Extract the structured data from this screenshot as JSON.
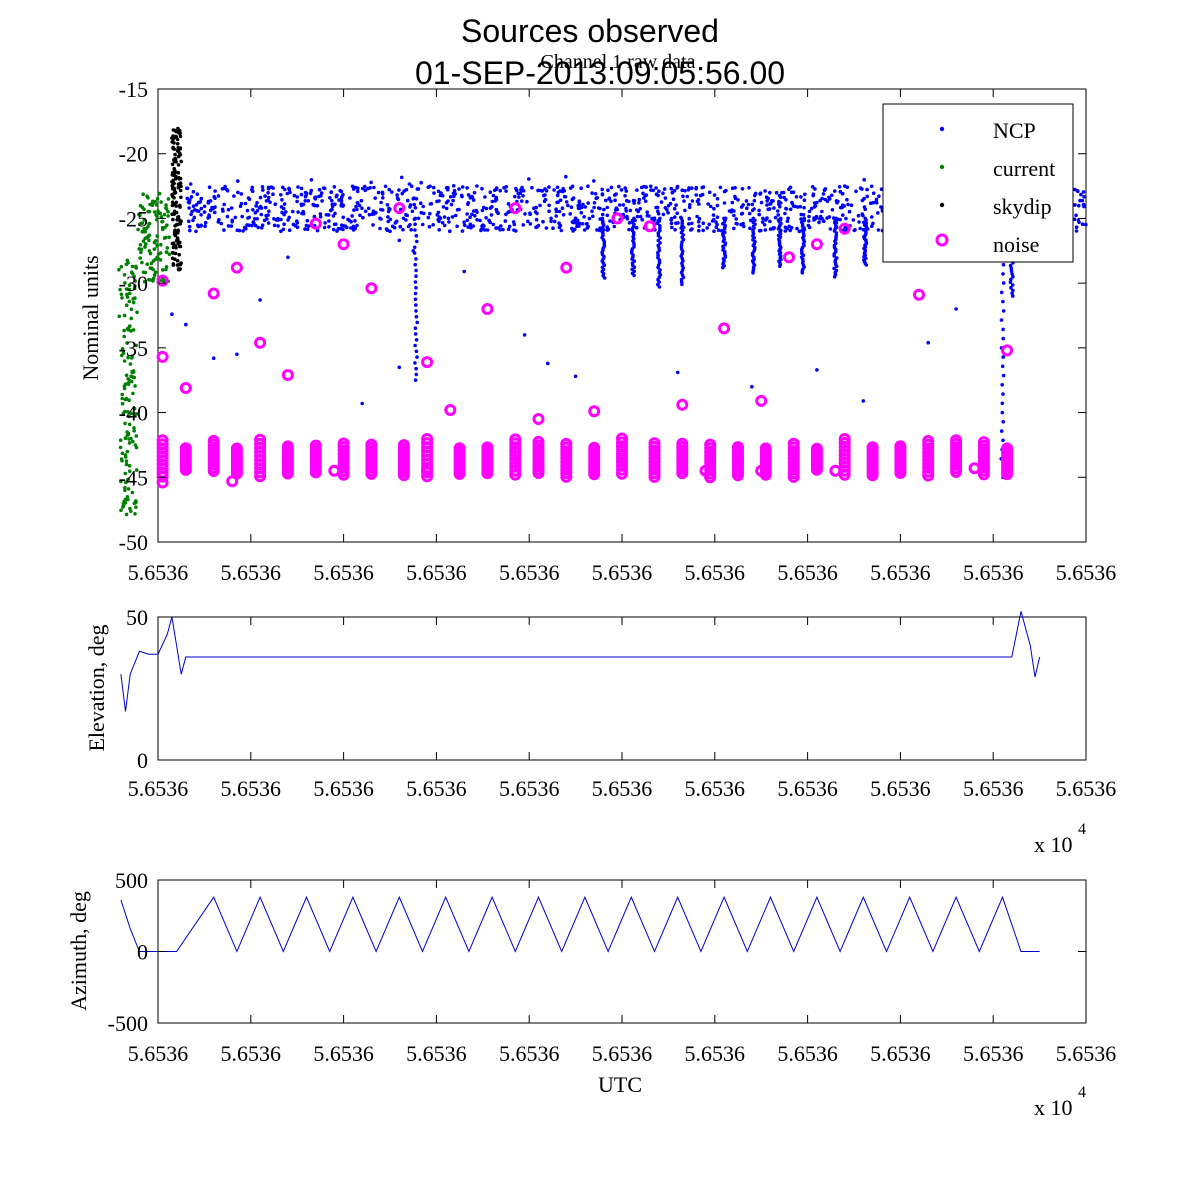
{
  "figure": {
    "title_line1": "Sources observed",
    "title_line2": "01-SEP-2013:09:05:56.00",
    "colors": {
      "NCP": "#0000ff",
      "current": "#008000",
      "skydip": "#000000",
      "noise": "#ff00ff",
      "line": "#0000cc"
    }
  },
  "chart_data": [
    {
      "type": "scatter",
      "title": "Channel 1 raw data",
      "ylabel": "Nominal units",
      "ylim": [
        -50,
        -15
      ],
      "yticks": [
        "-15",
        "-20",
        "-25",
        "-30",
        "-35",
        "-40",
        "-45",
        "-50"
      ],
      "xticks": [
        "5.6536",
        "5.6536",
        "5.6536",
        "5.6536",
        "5.6536",
        "5.6536",
        "5.6536",
        "5.6536",
        "5.6536",
        "5.6536",
        "5.6536"
      ],
      "x_domain": [
        0,
        10
      ],
      "legend": [
        "NCP",
        "current",
        "skydip",
        "noise"
      ],
      "legend_position": "top-right",
      "series": [
        {
          "name": "NCP",
          "note": "dense scan band between about -22 and -26 from x=0.3 to x=10, with dips",
          "band": [
            -26,
            -22.5
          ],
          "x_range": [
            0.3,
            10
          ],
          "dips": [
            [
              2.78,
              -37.5
            ],
            [
              4.8,
              -29.6
            ],
            [
              5.12,
              -29.4
            ],
            [
              5.4,
              -30.3
            ],
            [
              5.65,
              -30.1
            ],
            [
              6.1,
              -28.8
            ],
            [
              6.42,
              -29.2
            ],
            [
              6.7,
              -28.7
            ],
            [
              6.95,
              -29.2
            ],
            [
              7.3,
              -29.5
            ],
            [
              7.62,
              -28.6
            ],
            [
              9.1,
              -45.0
            ],
            [
              9.2,
              -31.0
            ]
          ],
          "outliers": [
            [
              0.15,
              -32.4
            ],
            [
              0.3,
              -33.2
            ],
            [
              0.6,
              -35.8
            ],
            [
              0.85,
              -35.5
            ],
            [
              1.1,
              -31.3
            ],
            [
              1.4,
              -28.0
            ],
            [
              2.2,
              -39.3
            ],
            [
              2.6,
              -36.5
            ],
            [
              3.3,
              -29.1
            ],
            [
              3.95,
              -34.0
            ],
            [
              4.2,
              -36.2
            ],
            [
              4.5,
              -37.2
            ],
            [
              5.6,
              -36.9
            ],
            [
              6.4,
              -38.0
            ],
            [
              7.1,
              -36.7
            ],
            [
              7.6,
              -39.1
            ],
            [
              8.3,
              -34.6
            ],
            [
              8.6,
              -32.0
            ],
            [
              2.6,
              -26.7
            ],
            [
              2.75,
              -27.5
            ]
          ]
        },
        {
          "name": "current",
          "x_range": [
            -0.4,
            0.15
          ],
          "y_range": [
            -48,
            -23
          ]
        },
        {
          "name": "skydip",
          "x_range": [
            0.15,
            0.25
          ],
          "y_range": [
            -29,
            -18
          ]
        },
        {
          "name": "noise",
          "cluster_y": [
            -42,
            -45
          ],
          "cluster_x": [
            0.05,
            0.3,
            0.6,
            0.85,
            1.1,
            1.4,
            1.7,
            2.0,
            2.3,
            2.65,
            2.9,
            3.25,
            3.55,
            3.85,
            4.1,
            4.4,
            4.7,
            5.0,
            5.35,
            5.65,
            5.95,
            6.25,
            6.55,
            6.85,
            7.1,
            7.4,
            7.7,
            8.0,
            8.3,
            8.6,
            8.9,
            9.15
          ],
          "points": [
            [
              0.05,
              -29.8
            ],
            [
              0.05,
              -35.7
            ],
            [
              0.3,
              -38.1
            ],
            [
              0.6,
              -30.8
            ],
            [
              0.85,
              -28.8
            ],
            [
              1.1,
              -34.6
            ],
            [
              1.4,
              -37.1
            ],
            [
              1.7,
              -25.4
            ],
            [
              2.0,
              -27.0
            ],
            [
              2.3,
              -30.4
            ],
            [
              2.6,
              -24.2
            ],
            [
              2.9,
              -36.1
            ],
            [
              3.15,
              -39.8
            ],
            [
              3.55,
              -32.0
            ],
            [
              3.85,
              -24.2
            ],
            [
              4.1,
              -40.5
            ],
            [
              4.4,
              -28.8
            ],
            [
              4.7,
              -39.9
            ],
            [
              4.95,
              -25.0
            ],
            [
              5.3,
              -25.6
            ],
            [
              5.65,
              -39.4
            ],
            [
              6.1,
              -33.5
            ],
            [
              6.5,
              -39.1
            ],
            [
              6.8,
              -28.0
            ],
            [
              7.1,
              -27.0
            ],
            [
              7.4,
              -25.8
            ],
            [
              8.2,
              -30.9
            ],
            [
              9.15,
              -35.2
            ],
            [
              0.05,
              -45.4
            ],
            [
              0.8,
              -45.3
            ],
            [
              1.9,
              -44.5
            ],
            [
              2.9,
              -44.5
            ],
            [
              4.1,
              -44.4
            ],
            [
              6.5,
              -44.5
            ],
            [
              8.8,
              -44.3
            ],
            [
              7.3,
              -44.5
            ],
            [
              5.9,
              -44.5
            ]
          ]
        }
      ]
    },
    {
      "type": "line",
      "ylabel": "Elevation, deg",
      "ylim": [
        0,
        50
      ],
      "yticks": [
        "50",
        "0"
      ],
      "xticks": [
        "5.6536",
        "5.6536",
        "5.6536",
        "5.6536",
        "5.6536",
        "5.6536",
        "5.6536",
        "5.6536",
        "5.6536",
        "5.6536",
        "5.6536"
      ],
      "x_exponent_label": "x 10",
      "x_exponent": "4",
      "series": [
        {
          "name": "Elevation",
          "points": [
            [
              -0.4,
              30
            ],
            [
              -0.35,
              17
            ],
            [
              -0.3,
              30
            ],
            [
              -0.2,
              38
            ],
            [
              -0.1,
              37
            ],
            [
              0.0,
              37
            ],
            [
              0.1,
              44
            ],
            [
              0.15,
              50
            ],
            [
              0.2,
              40
            ],
            [
              0.25,
              30
            ],
            [
              0.3,
              36
            ],
            [
              9.2,
              36
            ],
            [
              9.3,
              52
            ],
            [
              9.4,
              40
            ],
            [
              9.45,
              29
            ],
            [
              9.5,
              36
            ]
          ]
        }
      ]
    },
    {
      "type": "line",
      "ylabel": "Azimuth, deg",
      "xlabel": "UTC",
      "ylim": [
        -500,
        500
      ],
      "yticks": [
        "500",
        "0",
        "-500"
      ],
      "xticks": [
        "5.6536",
        "5.6536",
        "5.6536",
        "5.6536",
        "5.6536",
        "5.6536",
        "5.6536",
        "5.6536",
        "5.6536",
        "5.6536",
        "5.6536"
      ],
      "x_exponent_label": "x 10",
      "x_exponent": "4",
      "series": [
        {
          "name": "Azimuth",
          "points": [
            [
              -0.4,
              360
            ],
            [
              -0.3,
              160
            ],
            [
              -0.2,
              0
            ],
            [
              0.2,
              0
            ],
            [
              0.6,
              380
            ],
            [
              0.85,
              0
            ],
            [
              1.1,
              380
            ],
            [
              1.35,
              0
            ],
            [
              1.6,
              380
            ],
            [
              1.85,
              0
            ],
            [
              2.1,
              380
            ],
            [
              2.35,
              0
            ],
            [
              2.6,
              380
            ],
            [
              2.85,
              0
            ],
            [
              3.1,
              380
            ],
            [
              3.35,
              0
            ],
            [
              3.6,
              380
            ],
            [
              3.85,
              0
            ],
            [
              4.1,
              380
            ],
            [
              4.35,
              0
            ],
            [
              4.6,
              380
            ],
            [
              4.85,
              0
            ],
            [
              5.1,
              380
            ],
            [
              5.35,
              0
            ],
            [
              5.6,
              380
            ],
            [
              5.85,
              0
            ],
            [
              6.1,
              380
            ],
            [
              6.35,
              0
            ],
            [
              6.6,
              380
            ],
            [
              6.85,
              0
            ],
            [
              7.1,
              380
            ],
            [
              7.35,
              0
            ],
            [
              7.6,
              380
            ],
            [
              7.85,
              0
            ],
            [
              8.1,
              380
            ],
            [
              8.35,
              0
            ],
            [
              8.6,
              380
            ],
            [
              8.85,
              0
            ],
            [
              9.1,
              380
            ],
            [
              9.3,
              0
            ],
            [
              9.5,
              0
            ]
          ]
        }
      ]
    }
  ]
}
